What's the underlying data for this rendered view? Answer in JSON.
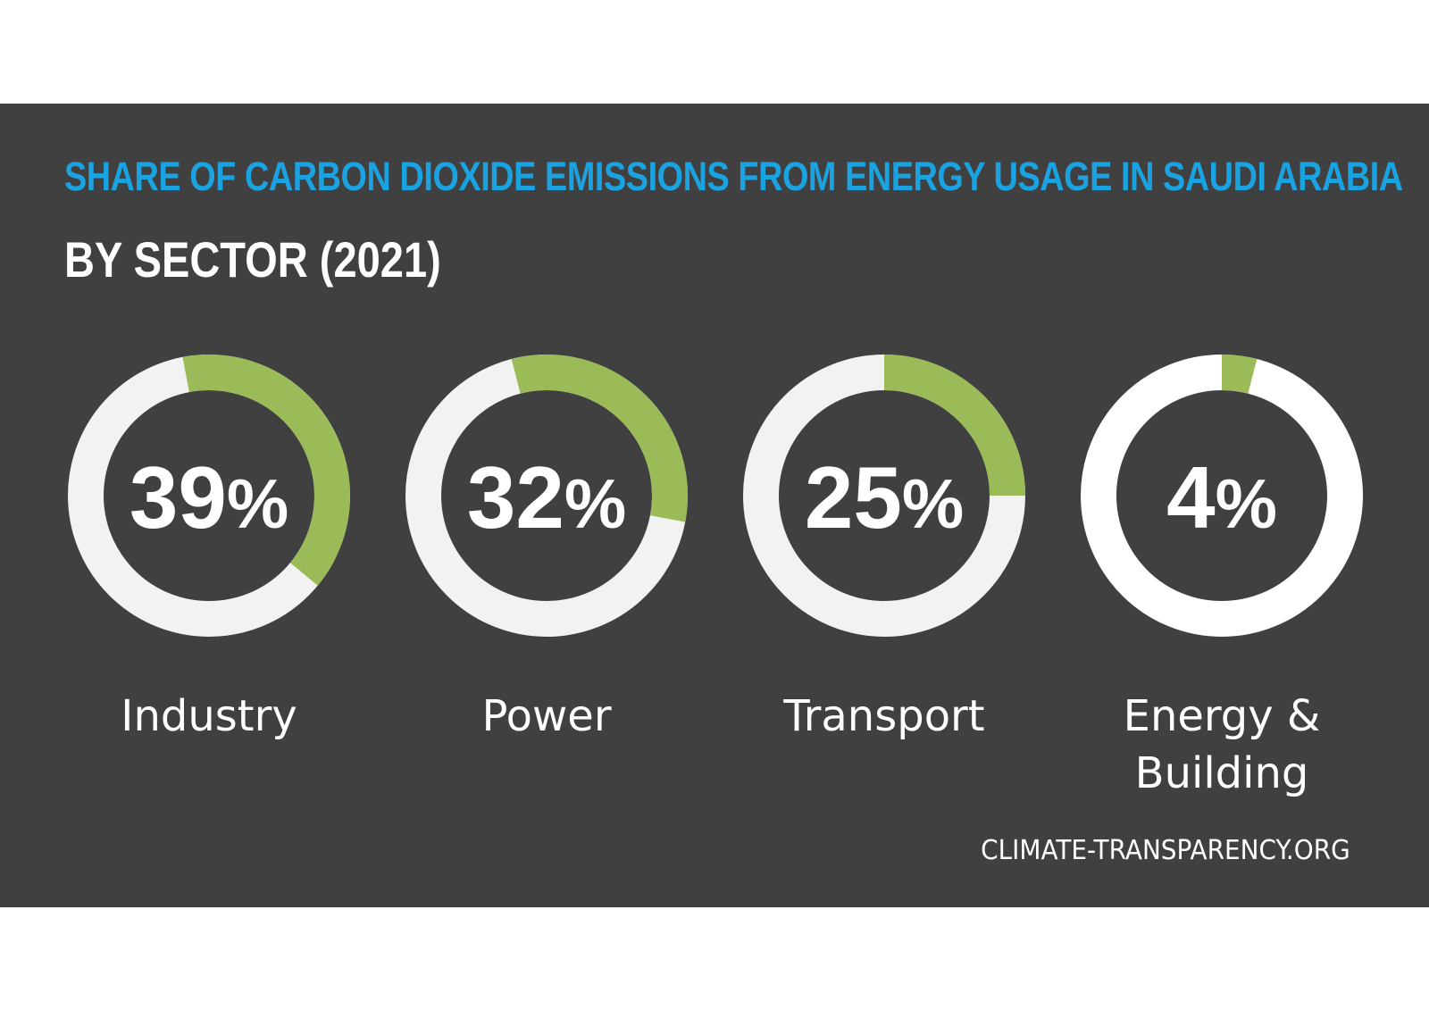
{
  "chart_data": {
    "type": "pie",
    "title": "SHARE OF CARBON DIOXIDE EMISSIONS FROM ENERGY USAGE IN SAUDI ARABIA",
    "subtitle": "BY SECTOR (2021)",
    "unit": "%",
    "categories": [
      "Industry",
      "Power",
      "Transport",
      "Energy & Building"
    ],
    "label_lines": [
      [
        "Industry"
      ],
      [
        "Power"
      ],
      [
        "Transport"
      ],
      [
        "Energy &",
        "Building"
      ]
    ],
    "values": [
      39,
      32,
      25,
      4
    ],
    "colors": {
      "filled": "#9bbb59",
      "track": "#f2f2f2",
      "track_small": "#ffffff"
    }
  },
  "source": "CLIMATE-TRANSPARENCY.ORG"
}
